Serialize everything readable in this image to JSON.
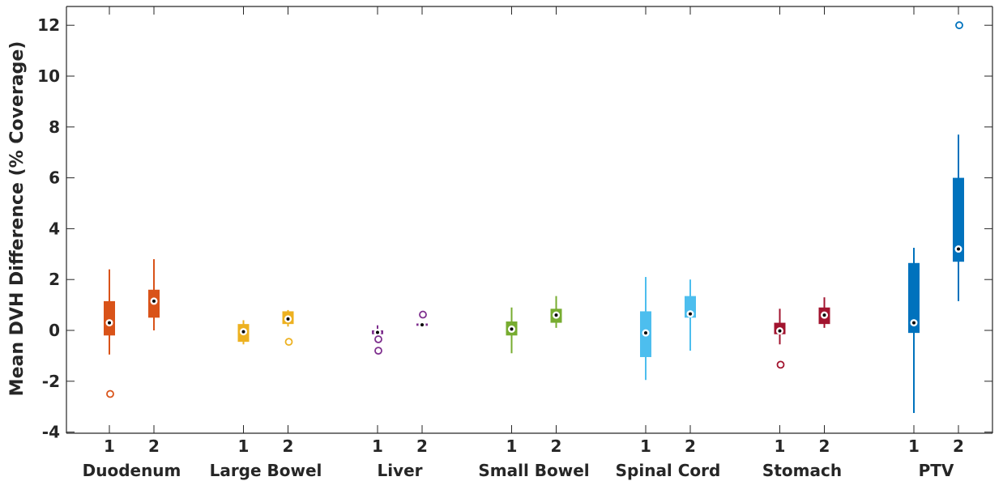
{
  "chart_data": {
    "type": "box",
    "title": "",
    "xlabel": "",
    "ylabel": "Mean DVH Difference (% Coverage)",
    "ylim": [
      -4,
      12.8
    ],
    "yticks": [
      -4,
      -2,
      0,
      2,
      4,
      6,
      8,
      10,
      12
    ],
    "grid": false,
    "groups": [
      {
        "name": "Duodenum",
        "color": "#D95319",
        "boxes": [
          {
            "label": "1",
            "whisker_low": -0.95,
            "q1": -0.2,
            "median": 0.3,
            "q3": 1.15,
            "whisker_high": 2.4,
            "outliers": [
              -2.5
            ]
          },
          {
            "label": "2",
            "whisker_low": 0.0,
            "q1": 0.5,
            "median": 1.15,
            "q3": 1.6,
            "whisker_high": 2.8,
            "outliers": []
          }
        ]
      },
      {
        "name": "Large Bowel",
        "color": "#EDB120",
        "boxes": [
          {
            "label": "1",
            "whisker_low": -0.55,
            "q1": -0.45,
            "median": -0.05,
            "q3": 0.25,
            "whisker_high": 0.4,
            "outliers": []
          },
          {
            "label": "2",
            "whisker_low": 0.15,
            "q1": 0.25,
            "median": 0.45,
            "q3": 0.75,
            "whisker_high": 0.8,
            "outliers": [
              -0.45
            ]
          }
        ]
      },
      {
        "name": "Liver",
        "color": "#7E2F8E",
        "boxes": [
          {
            "label": "1",
            "whisker_low": -0.2,
            "q1": -0.15,
            "median": -0.08,
            "q3": 0.0,
            "whisker_high": 0.2,
            "outliers": [
              -0.35,
              -0.8
            ]
          },
          {
            "label": "2",
            "whisker_low": 0.15,
            "q1": 0.18,
            "median": 0.22,
            "q3": 0.27,
            "whisker_high": 0.3,
            "outliers": [
              0.62
            ]
          }
        ]
      },
      {
        "name": "Small Bowel",
        "color": "#77AC30",
        "boxes": [
          {
            "label": "1",
            "whisker_low": -0.9,
            "q1": -0.2,
            "median": 0.05,
            "q3": 0.35,
            "whisker_high": 0.9,
            "outliers": []
          },
          {
            "label": "2",
            "whisker_low": 0.1,
            "q1": 0.3,
            "median": 0.6,
            "q3": 0.85,
            "whisker_high": 1.35,
            "outliers": []
          }
        ]
      },
      {
        "name": "Spinal Cord",
        "color": "#4DBEEE",
        "boxes": [
          {
            "label": "1",
            "whisker_low": -1.95,
            "q1": -1.05,
            "median": -0.1,
            "q3": 0.75,
            "whisker_high": 2.1,
            "outliers": []
          },
          {
            "label": "2",
            "whisker_low": -0.8,
            "q1": 0.5,
            "median": 0.65,
            "q3": 1.35,
            "whisker_high": 2.0,
            "outliers": []
          }
        ]
      },
      {
        "name": "Stomach",
        "color": "#A2142F",
        "boxes": [
          {
            "label": "1",
            "whisker_low": -0.55,
            "q1": -0.15,
            "median": -0.02,
            "q3": 0.3,
            "whisker_high": 0.85,
            "outliers": [
              -1.35
            ]
          },
          {
            "label": "2",
            "whisker_low": 0.1,
            "q1": 0.25,
            "median": 0.6,
            "q3": 0.9,
            "whisker_high": 1.3,
            "outliers": []
          }
        ]
      },
      {
        "name": "PTV",
        "color": "#0072BD",
        "boxes": [
          {
            "label": "1",
            "whisker_low": -3.25,
            "q1": -0.1,
            "median": 0.3,
            "q3": 2.65,
            "whisker_high": 3.25,
            "outliers": []
          },
          {
            "label": "2",
            "whisker_low": 1.15,
            "q1": 2.7,
            "median": 3.2,
            "q3": 6.0,
            "whisker_high": 7.7,
            "outliers": [
              12.0
            ]
          }
        ]
      }
    ]
  }
}
